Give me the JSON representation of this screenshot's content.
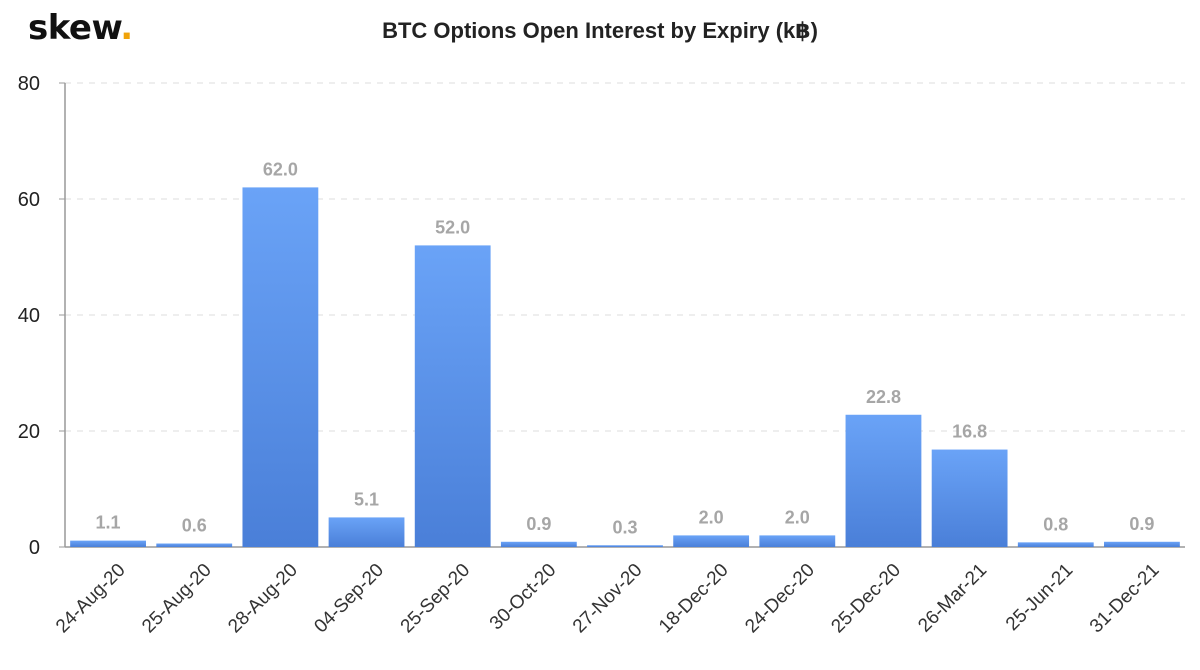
{
  "brand": {
    "name": "skew",
    "dot": ".",
    "dot_color": "#f0a30a"
  },
  "chart_data": {
    "type": "bar",
    "title": "BTC Options Open Interest by Expiry (k฿)",
    "categories": [
      "24-Aug-20",
      "25-Aug-20",
      "28-Aug-20",
      "04-Sep-20",
      "25-Sep-20",
      "30-Oct-20",
      "27-Nov-20",
      "18-Dec-20",
      "24-Dec-20",
      "25-Dec-20",
      "26-Mar-21",
      "25-Jun-21",
      "31-Dec-21"
    ],
    "values": [
      1.1,
      0.6,
      62.0,
      5.1,
      52.0,
      0.9,
      0.3,
      2.0,
      2.0,
      22.8,
      16.8,
      0.8,
      0.9
    ],
    "value_labels": [
      "1.1",
      "0.6",
      "62.0",
      "5.1",
      "52.0",
      "0.9",
      "0.3",
      "2.0",
      "2.0",
      "22.8",
      "16.8",
      "0.8",
      "0.9"
    ],
    "ylim": [
      0,
      80
    ],
    "yticks": [
      0,
      20,
      40,
      60,
      80
    ],
    "ytick_labels": [
      "0",
      "20",
      "40",
      "60",
      "80"
    ],
    "xlabel": "",
    "ylabel": "",
    "grid": true,
    "legend": false,
    "bar_color_top": "#6aa3f7",
    "bar_color_bottom": "#4a7fd8"
  }
}
